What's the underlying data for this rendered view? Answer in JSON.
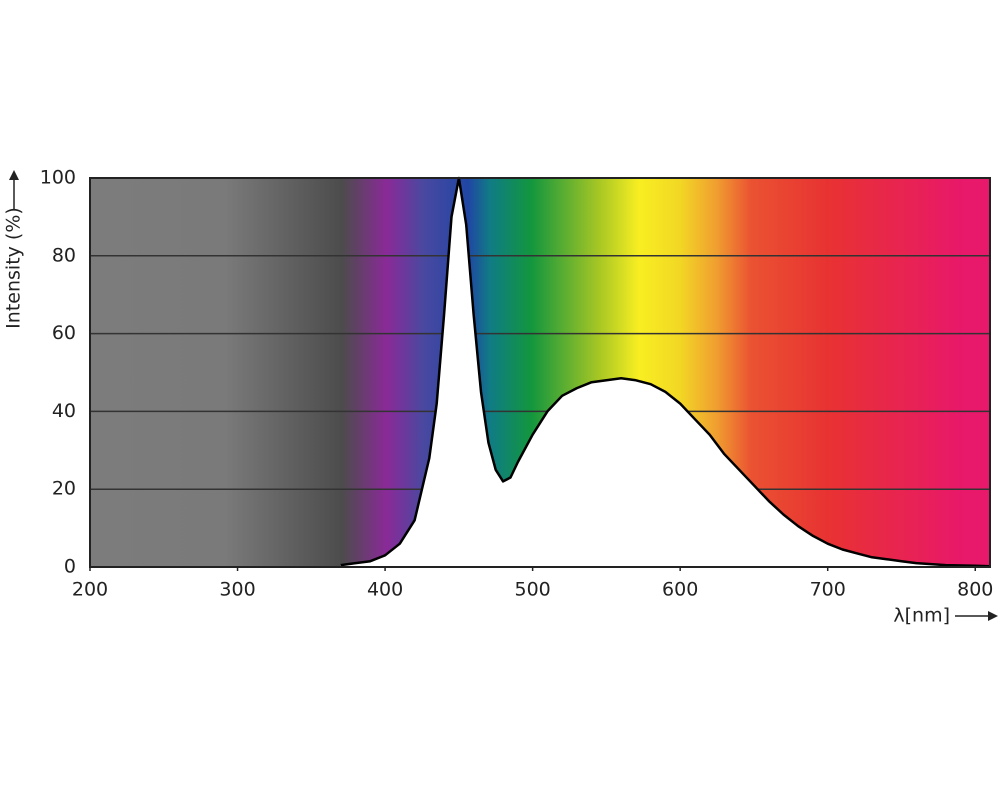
{
  "chart_data": {
    "type": "line",
    "ylabel": "Intensity (%)",
    "xlabel": "λ[nm]",
    "x": [
      370,
      380,
      390,
      400,
      410,
      420,
      430,
      435,
      440,
      445,
      450,
      455,
      460,
      465,
      470,
      475,
      480,
      485,
      490,
      500,
      510,
      520,
      530,
      540,
      550,
      560,
      570,
      580,
      590,
      600,
      610,
      620,
      630,
      640,
      650,
      660,
      670,
      680,
      690,
      700,
      710,
      720,
      730,
      740,
      750,
      760,
      780,
      800,
      810
    ],
    "values": [
      0.5,
      1,
      1.5,
      3,
      6,
      12,
      28,
      42,
      65,
      90,
      100,
      88,
      65,
      45,
      32,
      25,
      22,
      23,
      27,
      34,
      40,
      44,
      46,
      47.5,
      48,
      48.5,
      48,
      47,
      45,
      42,
      38,
      34,
      29,
      25,
      21,
      17,
      13.5,
      10.5,
      8,
      6,
      4.5,
      3.5,
      2.5,
      2,
      1.5,
      1,
      0.5,
      0.3,
      0.2
    ],
    "color": "#000000",
    "xlim": [
      200,
      810
    ],
    "ylim": [
      0,
      100
    ],
    "xticks": [
      200,
      300,
      400,
      500,
      600,
      700,
      800
    ],
    "yticks": [
      0,
      20,
      40,
      60,
      80,
      100
    ],
    "grid": true
  }
}
